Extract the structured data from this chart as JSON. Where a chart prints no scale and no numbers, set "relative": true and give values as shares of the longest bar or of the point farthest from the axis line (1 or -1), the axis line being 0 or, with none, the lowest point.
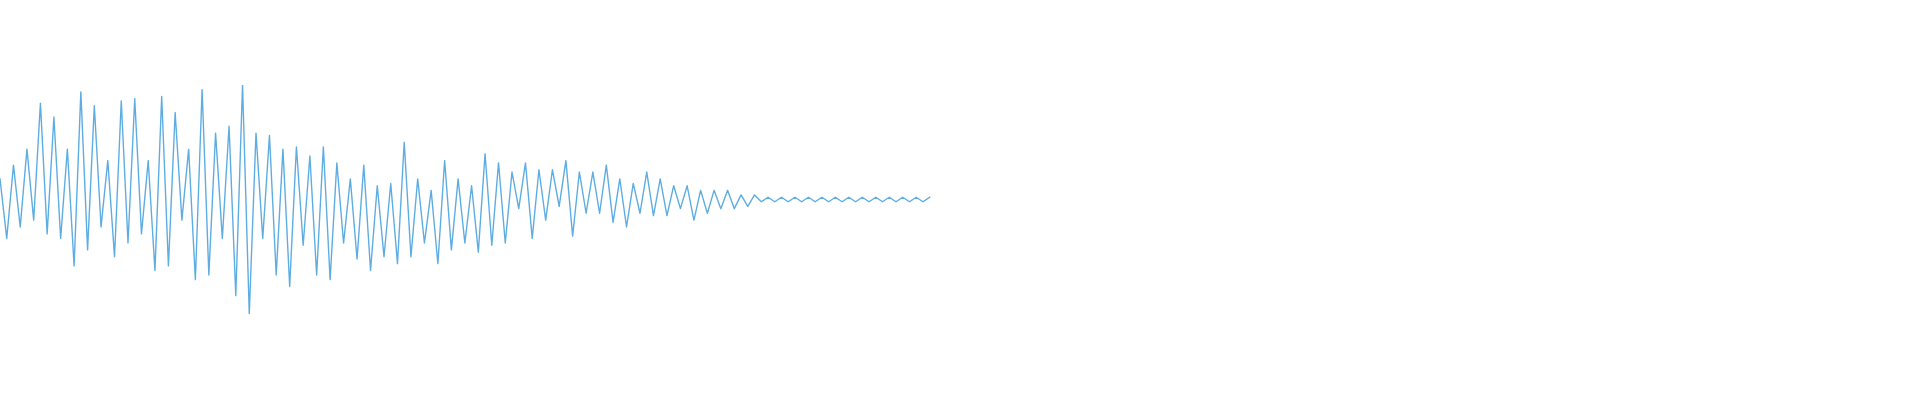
{
  "chart_data": {
    "type": "line",
    "relative": true,
    "marker": "none",
    "line_style": "solid",
    "categories": [
      null,
      null,
      null,
      null,
      null,
      null,
      null,
      null,
      null,
      null,
      null,
      null,
      null,
      null,
      null,
      null,
      null,
      null,
      null,
      null,
      null,
      null,
      null,
      null,
      null,
      null,
      null,
      null,
      null,
      null,
      null,
      null,
      null,
      null,
      null,
      null,
      null,
      null,
      null,
      null,
      null,
      null,
      null,
      null,
      null,
      null,
      null,
      null,
      null,
      null,
      null,
      null,
      null,
      null,
      null,
      null,
      null,
      null,
      null,
      null,
      null,
      null,
      null,
      null,
      null,
      null,
      null,
      null,
      null,
      null,
      null,
      null,
      null,
      null,
      null,
      null,
      null,
      null,
      null,
      null,
      null,
      null,
      null,
      null,
      null,
      null,
      null,
      null,
      null,
      null,
      null,
      null,
      null,
      null,
      null,
      null,
      null,
      null,
      null,
      null,
      null,
      null,
      null,
      null,
      null,
      null,
      null,
      null,
      null,
      null,
      null,
      null,
      null,
      null,
      null,
      null,
      null,
      null,
      null,
      null,
      null,
      null,
      null,
      null,
      null,
      null,
      null,
      null,
      null,
      null,
      null,
      null,
      null,
      null,
      null,
      null,
      null,
      null,
      null,
      null,
      null,
      null,
      null,
      null,
      null,
      null,
      null,
      null,
      null,
      null,
      null,
      null,
      null,
      null,
      null,
      null,
      null,
      null,
      null,
      null,
      null,
      null,
      null,
      null,
      null,
      null,
      null,
      null,
      null,
      null,
      null,
      null,
      null,
      null,
      null,
      null,
      null,
      null,
      null,
      null,
      null,
      null,
      null,
      null,
      null,
      null,
      null,
      null,
      null,
      null,
      null,
      null,
      null,
      null,
      null,
      null,
      null,
      null,
      null,
      null,
      null,
      null,
      null,
      null,
      null,
      null,
      null,
      null,
      null,
      null,
      null,
      null,
      null,
      null,
      null,
      null,
      null,
      null,
      null,
      null,
      null,
      null,
      null,
      null,
      null,
      null,
      null,
      null,
      null,
      null,
      null,
      null,
      null,
      null,
      null,
      null,
      null,
      null,
      null,
      null,
      null,
      null,
      null,
      null,
      null,
      null,
      null,
      null,
      null,
      null,
      null,
      null,
      null,
      null,
      null,
      null,
      null,
      null,
      null,
      null,
      null,
      null,
      null,
      null,
      null,
      null,
      null,
      null,
      null,
      null,
      null,
      null,
      null,
      null,
      null,
      null,
      null,
      null,
      null,
      null,
      null,
      null,
      null,
      null,
      null,
      null
    ],
    "series": [
      {
        "color": "#5dade2",
        "values": [
          0.59,
          0.33,
          0.65,
          0.38,
          0.72,
          0.41,
          0.92,
          0.35,
          0.86,
          0.33,
          0.72,
          0.21,
          0.97,
          0.28,
          0.91,
          0.38,
          0.67,
          0.25,
          0.93,
          0.31,
          0.94,
          0.35,
          0.67,
          0.19,
          0.95,
          0.21,
          0.88,
          0.41,
          0.72,
          0.15,
          0.98,
          0.17,
          0.79,
          0.33,
          0.82,
          0.08,
          1.0,
          0,
          0.79,
          0.33,
          0.78,
          0.17,
          0.72,
          0.12,
          0.73,
          0.3,
          0.69,
          0.17,
          0.73,
          0.15,
          0.66,
          0.31,
          0.59,
          0.24,
          0.65,
          0.19,
          0.56,
          0.25,
          0.57,
          0.22,
          0.75,
          0.25,
          0.59,
          0.31,
          0.54,
          0.22,
          0.67,
          0.28,
          0.59,
          0.31,
          0.56,
          0.27,
          0.7,
          0.3,
          0.66,
          0.31,
          0.62,
          0.46,
          0.66,
          0.33,
          0.63,
          0.41,
          0.63,
          0.47,
          0.67,
          0.34,
          0.62,
          0.44,
          0.62,
          0.44,
          0.65,
          0.4,
          0.59,
          0.38,
          0.57,
          0.44,
          0.62,
          0.43,
          0.59,
          0.43,
          0.56,
          0.46,
          0.56,
          0.41,
          0.54,
          0.44,
          0.54,
          0.46,
          0.54,
          0.46,
          0.52,
          0.47,
          0.52,
          0.49,
          0.51,
          0.49,
          0.51,
          0.49,
          0.51,
          0.49,
          0.51,
          0.49,
          0.51,
          0.49,
          0.51,
          0.49,
          0.51,
          0.49,
          0.51,
          0.49,
          0.51,
          0.49,
          0.51,
          0.49,
          0.51,
          0.49,
          0.51,
          0.49,
          0.51,
          null,
          null,
          null,
          null,
          null,
          null,
          null,
          null,
          null,
          null,
          null,
          null,
          null,
          null,
          null,
          null,
          null,
          null,
          null,
          null,
          null,
          null,
          null,
          null,
          null,
          null,
          null,
          null,
          null,
          null,
          null,
          null,
          null,
          null,
          null,
          null,
          null,
          null,
          null,
          null,
          null,
          null,
          null,
          null,
          null,
          null,
          null,
          null,
          null,
          null,
          null,
          null,
          null,
          null,
          null,
          null,
          null,
          null,
          null,
          null,
          null,
          null,
          null,
          null,
          null,
          null,
          null,
          null,
          null,
          null,
          null,
          null,
          null,
          null,
          null,
          null,
          null,
          null,
          null,
          null,
          null,
          null,
          null,
          null,
          null,
          null,
          null,
          null,
          null,
          null,
          null,
          null,
          null,
          null,
          null,
          null,
          null,
          null,
          null,
          null,
          null,
          null,
          null,
          null,
          null,
          null,
          null,
          null,
          null,
          null,
          null,
          null,
          null,
          null,
          null,
          null,
          null,
          null,
          null,
          null,
          null,
          null,
          null,
          null,
          null,
          null,
          null,
          null,
          null,
          null,
          null,
          null,
          null,
          null,
          null,
          null,
          null,
          null,
          null,
          null,
          null,
          null,
          null,
          null,
          null,
          null,
          null
        ]
      }
    ]
  }
}
